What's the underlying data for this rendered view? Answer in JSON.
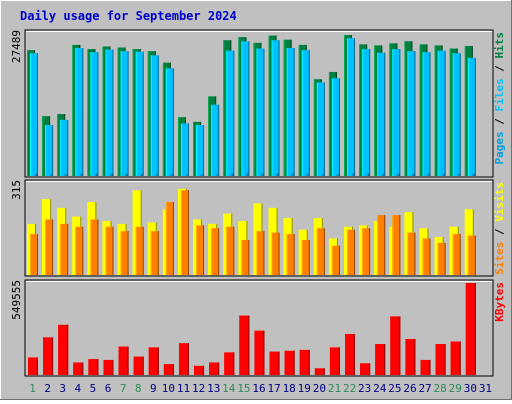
{
  "chart_data": {
    "type": "bar",
    "title": "Daily usage for September 2024",
    "colors": {
      "background": "#c0c0c0",
      "title": "#0000cc",
      "hits": "#008040",
      "files": "#00c0ff",
      "pages": "#00a0e0",
      "visits": "#ffff00",
      "sites": "#ff8000",
      "kbytes": "#ff0000",
      "weekend_label": "#2e8b57",
      "weekday_label": "#000080"
    },
    "categories": [
      "1",
      "2",
      "3",
      "4",
      "5",
      "6",
      "7",
      "8",
      "9",
      "10",
      "11",
      "12",
      "13",
      "14",
      "15",
      "16",
      "17",
      "18",
      "19",
      "20",
      "21",
      "22",
      "23",
      "24",
      "25",
      "26",
      "27",
      "28",
      "29",
      "30",
      "31"
    ],
    "weekend_days": [
      "1",
      "7",
      "8",
      "14",
      "15",
      "21",
      "22",
      "28",
      "29"
    ],
    "panels": [
      {
        "ylabel_parts": [
          "Hits",
          "Files",
          "Pages"
        ],
        "ymax_label": "27489",
        "ylim": [
          0,
          27489
        ],
        "series": [
          {
            "name": "Hits",
            "values": [
              24200,
              11500,
              11900,
              25200,
              24400,
              24900,
              24700,
              24400,
              24000,
              21800,
              11300,
              10400,
              15300,
              26100,
              26700,
              25600,
              27000,
              26200,
              25200,
              18600,
              20000,
              27100,
              25300,
              25100,
              25500,
              25900,
              25300,
              25100,
              24500,
              25000,
              0
            ]
          },
          {
            "name": "Files",
            "values": [
              23600,
              9800,
              10800,
              24600,
              23800,
              24300,
              24000,
              23900,
              23200,
              20700,
              10100,
              9800,
              13700,
              24100,
              25900,
              24500,
              26100,
              24600,
              24200,
              18000,
              18800,
              26500,
              24400,
              23700,
              24400,
              24000,
              23800,
              24100,
              23600,
              22700,
              0
            ]
          },
          {
            "name": "Pages",
            "values": [
              350,
              280,
              300,
              380,
              360,
              400,
              380,
              370,
              350,
              300,
              260,
              250,
              300,
              420,
              450,
              400,
              460,
              420,
              380,
              300,
              320,
              460,
              400,
              380,
              420,
              400,
              390,
              380,
              370,
              360,
              0
            ]
          }
        ]
      },
      {
        "ylabel_parts": [
          "Visits",
          "Sites"
        ],
        "ymax_label": "315",
        "ylim": [
          0,
          315
        ],
        "series": [
          {
            "name": "Visits",
            "values": [
              175,
              260,
              230,
              200,
              250,
              185,
              175,
              290,
              180,
              225,
              295,
              190,
              175,
              210,
              185,
              245,
              230,
              195,
              155,
              195,
              125,
              165,
              170,
              185,
              165,
              215,
              160,
              130,
              165,
              225,
              0
            ]
          },
          {
            "name": "Sites",
            "values": [
              140,
              190,
              175,
              165,
              190,
              165,
              150,
              165,
              150,
              250,
              290,
              170,
              160,
              165,
              120,
              150,
              145,
              140,
              120,
              160,
              100,
              155,
              160,
              205,
              205,
              145,
              125,
              110,
              140,
              135,
              0
            ]
          }
        ]
      },
      {
        "ylabel_parts": [
          "KBytes"
        ],
        "ymax_label": "549555",
        "ylim": [
          0,
          549555
        ],
        "series": [
          {
            "name": "KBytes",
            "values": [
              105000,
              225000,
              300000,
              75000,
              95000,
              90000,
              170000,
              110000,
              165000,
              65000,
              190000,
              55000,
              75000,
              135000,
              355000,
              265000,
              140000,
              145000,
              150000,
              40000,
              165000,
              245000,
              70000,
              185000,
              350000,
              215000,
              90000,
              185000,
              200000,
              549555,
              0
            ]
          }
        ]
      }
    ]
  }
}
